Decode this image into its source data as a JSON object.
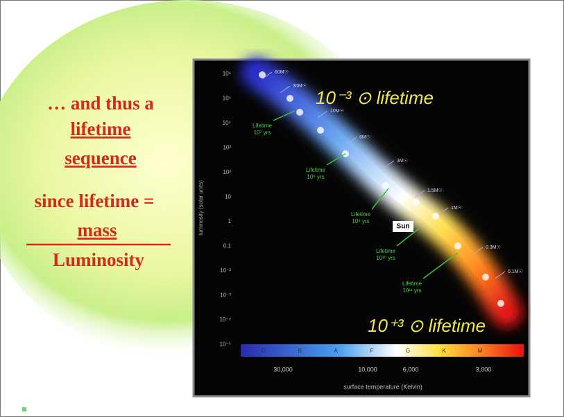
{
  "slide": {
    "text_lines": [
      "… and thus a",
      "lifetime",
      "sequence",
      "since lifetime =",
      "mass",
      "Luminosity"
    ],
    "diagram": {
      "annotation_top": "10⁻³ ⊙ lifetime",
      "annotation_bottom": "10⁺³ ⊙ lifetime",
      "y_axis_title": "luminosity (solar units)",
      "x_axis_title": "surface temperature (Kelvin)",
      "y_ticks": [
        "10⁶",
        "10⁵",
        "10⁴",
        "10³",
        "10²",
        "10",
        "1",
        "0.1",
        "10⁻²",
        "10⁻³",
        "10⁻⁴",
        "10⁻⁵"
      ],
      "x_ticks": [
        "30,000",
        "10,000",
        "6,000",
        "3,000"
      ],
      "spectral_classes": [
        "O",
        "B",
        "A",
        "F",
        "G",
        "K",
        "M"
      ],
      "mass_labels": [
        "60M☉",
        "30M☉",
        "10M☉",
        "6M☉",
        "3M☉",
        "1.5M☉",
        "1M☉",
        "0.3M☉",
        "0.1M☉"
      ],
      "lifetime_labels": [
        [
          "Lifetime",
          "10⁷ yrs"
        ],
        [
          "Lifetime",
          "10⁸ yrs"
        ],
        [
          "Lifetime",
          "10⁹ yrs"
        ],
        [
          "Lifetime",
          "10¹⁰ yrs"
        ],
        [
          "Lifetime",
          "10¹¹ yrs"
        ]
      ],
      "sun_label": "Sun"
    }
  }
}
